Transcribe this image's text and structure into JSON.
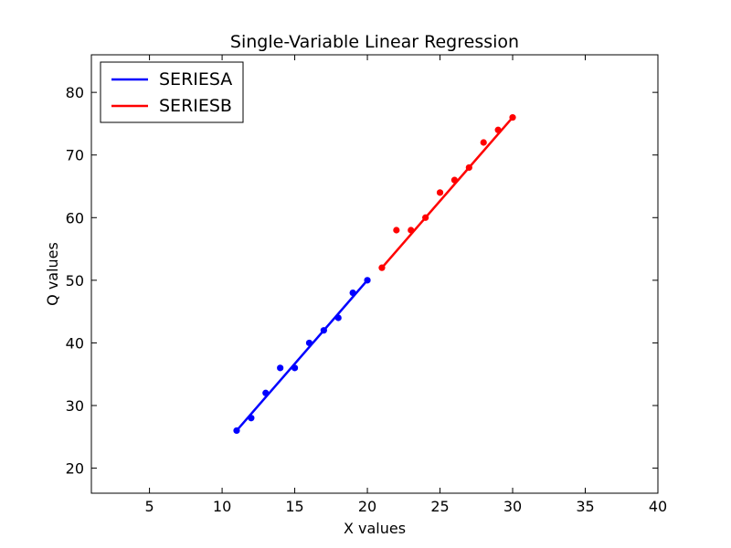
{
  "chart_data": {
    "type": "scatter",
    "title": "Single-Variable Linear Regression",
    "xlabel": "X values",
    "ylabel": "Q values",
    "xlim": [
      1,
      40
    ],
    "ylim": [
      16,
      86
    ],
    "xticks": [
      5,
      10,
      15,
      20,
      25,
      30,
      35,
      40
    ],
    "yticks": [
      20,
      30,
      40,
      50,
      60,
      70,
      80
    ],
    "grid": false,
    "legend_position": "top-left",
    "series": [
      {
        "name": "SERIESA",
        "color": "#0000ff",
        "points": [
          [
            11,
            26
          ],
          [
            12,
            28
          ],
          [
            13,
            32
          ],
          [
            14,
            36
          ],
          [
            15,
            36
          ],
          [
            16,
            40
          ],
          [
            17,
            42
          ],
          [
            18,
            44
          ],
          [
            19,
            48
          ],
          [
            20,
            50
          ]
        ],
        "fit_line": [
          [
            11,
            26
          ],
          [
            20,
            50
          ]
        ]
      },
      {
        "name": "SERIESB",
        "color": "#ff0000",
        "points": [
          [
            21,
            52
          ],
          [
            22,
            58
          ],
          [
            23,
            58
          ],
          [
            24,
            60
          ],
          [
            25,
            64
          ],
          [
            26,
            66
          ],
          [
            27,
            68
          ],
          [
            28,
            72
          ],
          [
            29,
            74
          ],
          [
            30,
            76
          ]
        ],
        "fit_line": [
          [
            21,
            52
          ],
          [
            30,
            76
          ]
        ]
      }
    ]
  }
}
